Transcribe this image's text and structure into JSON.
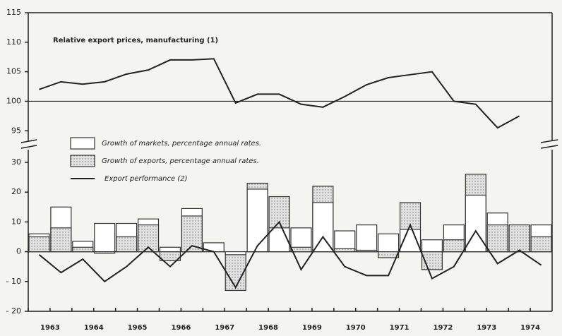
{
  "chart_data": [
    {
      "type": "line",
      "annotation": "Relative export prices, manufacturing (1)",
      "values": [
        102,
        103.3,
        102.9,
        103.3,
        104.6,
        105.3,
        107,
        107,
        107.2,
        99.7,
        101.2,
        101.2,
        99.5,
        99,
        100.8,
        102.8,
        104,
        104.5,
        105,
        100,
        99.5,
        95.5,
        97.5,
        null
      ],
      "color": "#222222",
      "ylim": [
        93,
        115
      ],
      "yticks": [
        95,
        100,
        105,
        110,
        115
      ],
      "reference_line": 100
    },
    {
      "type": "bar",
      "categories": [
        "1963",
        null,
        "1964",
        null,
        "1965",
        null,
        "1966",
        null,
        "1967",
        null,
        "1968",
        null,
        "1969",
        null,
        "1970",
        null,
        "1971",
        null,
        "1972",
        null,
        "1973",
        null,
        "1974",
        null
      ],
      "series": [
        {
          "name": "Growth of markets, percentage annual rates.",
          "color": "#ffffff",
          "values": [
            6,
            15,
            3.5,
            9.5,
            9.5,
            11,
            1.5,
            14.5,
            3,
            -1,
            21,
            8,
            8,
            16.5,
            7,
            9,
            6,
            7.5,
            4,
            9,
            19,
            13,
            9,
            9
          ]
        },
        {
          "name": "Growth of exports, percentage annual rates.",
          "color": "#d8d8d8",
          "values": [
            5,
            8,
            1.5,
            -0.5,
            5,
            9,
            -3,
            12,
            0,
            -13,
            23,
            18.5,
            1.5,
            22,
            1,
            0.5,
            -2,
            16.5,
            -6,
            4,
            26,
            9,
            9,
            5
          ]
        },
        {
          "name": "Export performance (2)",
          "color": "#222222",
          "type": "line",
          "values": [
            -1,
            -7,
            -2.5,
            -10,
            -5,
            1.5,
            -5,
            2,
            0,
            -12,
            2,
            10,
            -6,
            5,
            -5,
            -8,
            -8,
            9,
            -9,
            -5,
            7,
            -4,
            0.5,
            -4.5
          ]
        }
      ],
      "ylim": [
        -20,
        30
      ],
      "yticks": [
        {
          "value": -20,
          "label": "- 20"
        },
        {
          "value": -10,
          "label": "- 10"
        },
        0,
        10,
        20,
        30
      ],
      "legend": "upper left"
    }
  ]
}
